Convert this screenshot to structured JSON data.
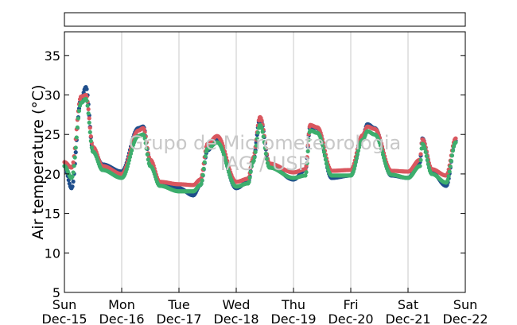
{
  "chart_data": {
    "type": "scatter",
    "title": "",
    "xlabel": "",
    "ylabel": "Air temperature (°C)",
    "ylim": [
      5,
      38
    ],
    "yticks": [
      5,
      10,
      15,
      20,
      25,
      30,
      35
    ],
    "xlim": [
      "2013-12-15",
      "2013-12-22"
    ],
    "x_tick_days": [
      "Sun",
      "Mon",
      "Tue",
      "Wed",
      "Thu",
      "Fri",
      "Sat",
      "Sun"
    ],
    "x_tick_dates": [
      "Dec-15",
      "Dec-16",
      "Dec-17",
      "Dec-18",
      "Dec-19",
      "Dec-20",
      "Dec-21",
      "Dec-22"
    ],
    "grid": "vertical",
    "legend": "empty box above plot",
    "watermark": [
      "Grupo de Micrometeorologia",
      "IAG / USP"
    ],
    "series_colors": [
      "#1f4e8c",
      "#d9575f",
      "#3dae6d"
    ],
    "keypoints_hours": [
      0,
      3,
      7,
      9,
      12,
      16,
      24,
      31,
      33,
      36,
      40,
      48,
      54,
      57,
      60,
      64,
      72,
      77,
      79,
      82,
      86,
      96,
      101,
      103,
      106,
      112,
      120,
      125,
      127,
      130,
      137,
      144,
      149,
      150,
      154,
      160,
      164
    ],
    "series": [
      {
        "values": [
          21.0,
          18.2,
          29.5,
          31.0,
          23.0,
          21.2,
          20.3,
          25.8,
          26.0,
          21.5,
          18.8,
          18.2,
          17.3,
          18.6,
          23.0,
          24.5,
          18.2,
          19.0,
          21.5,
          27.0,
          21.2,
          19.3,
          20.5,
          26.0,
          25.8,
          19.5,
          19.8,
          24.8,
          26.3,
          25.8,
          19.8,
          19.5,
          21.5,
          24.5,
          20.2,
          18.5,
          24.2
        ]
      },
      {
        "values": [
          21.5,
          20.8,
          29.8,
          30.0,
          23.4,
          21.0,
          20.0,
          25.5,
          25.8,
          21.8,
          19.0,
          18.7,
          18.6,
          19.3,
          23.8,
          24.8,
          19.0,
          19.4,
          22.0,
          27.2,
          21.3,
          20.2,
          20.6,
          26.2,
          25.9,
          20.4,
          20.5,
          24.9,
          26.0,
          25.7,
          20.4,
          20.3,
          21.8,
          24.4,
          20.6,
          19.8,
          24.5
        ]
      },
      {
        "values": [
          21.0,
          19.5,
          29.0,
          29.5,
          22.8,
          20.5,
          19.5,
          24.8,
          25.0,
          21.0,
          18.5,
          17.8,
          17.8,
          18.6,
          23.2,
          24.0,
          18.4,
          18.8,
          21.5,
          26.2,
          20.8,
          19.5,
          19.8,
          25.5,
          25.2,
          19.8,
          19.8,
          24.3,
          25.4,
          25.0,
          19.9,
          19.5,
          21.0,
          23.8,
          20.0,
          18.9,
          24.0
        ]
      }
    ]
  }
}
